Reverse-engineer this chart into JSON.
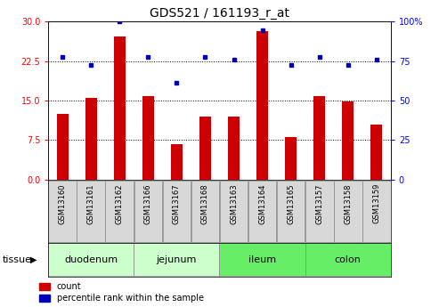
{
  "title": "GDS521 / 161193_r_at",
  "samples": [
    "GSM13160",
    "GSM13161",
    "GSM13162",
    "GSM13166",
    "GSM13167",
    "GSM13168",
    "GSM13163",
    "GSM13164",
    "GSM13165",
    "GSM13157",
    "GSM13158",
    "GSM13159"
  ],
  "count_values": [
    12.5,
    15.5,
    27.2,
    15.8,
    6.8,
    12.0,
    12.0,
    28.2,
    8.0,
    15.8,
    14.8,
    10.5
  ],
  "percentile_values": [
    23.3,
    21.7,
    30.0,
    23.3,
    18.3,
    23.3,
    22.7,
    28.3,
    21.7,
    23.3,
    21.7,
    22.7
  ],
  "bar_color": "#cc0000",
  "blue_color": "#0000bb",
  "left_ylim": [
    0,
    30
  ],
  "right_ylim": [
    0,
    100
  ],
  "left_yticks": [
    0,
    7.5,
    15,
    22.5,
    30
  ],
  "right_yticks": [
    0,
    25,
    50,
    75,
    100
  ],
  "tissue_groups": [
    {
      "label": "duodenum",
      "start": 0,
      "end": 3,
      "color": "#ccffcc"
    },
    {
      "label": "jejunum",
      "start": 3,
      "end": 6,
      "color": "#ccffcc"
    },
    {
      "label": "ileum",
      "start": 6,
      "end": 9,
      "color": "#66ee66"
    },
    {
      "label": "colon",
      "start": 9,
      "end": 12,
      "color": "#66ee66"
    }
  ],
  "tissue_label": "tissue",
  "legend_count_label": "count",
  "legend_percentile_label": "percentile rank within the sample",
  "bar_width": 0.4,
  "title_fontsize": 10,
  "tick_fontsize": 7,
  "sample_fontsize": 6
}
